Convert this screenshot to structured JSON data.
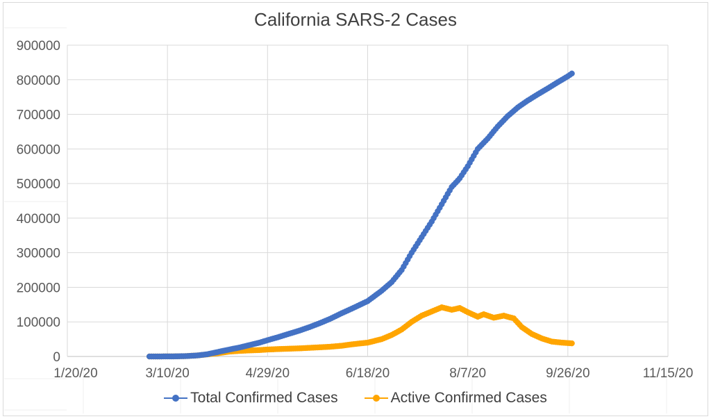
{
  "chart_data": {
    "type": "scatter",
    "title": "California SARS-2 Cases",
    "x_axis": {
      "type": "date",
      "min": "2020-01-20",
      "max": "2020-11-15",
      "tick_labels": [
        "1/20/20",
        "3/10/20",
        "4/29/20",
        "6/18/20",
        "8/7/20",
        "9/26/20",
        "11/15/20"
      ]
    },
    "y_axis": {
      "min": 0,
      "max": 900000,
      "tick_labels": [
        "0",
        "100000",
        "200000",
        "300000",
        "400000",
        "500000",
        "600000",
        "700000",
        "800000",
        "900000"
      ]
    },
    "grid": true,
    "legend_position": "bottom",
    "colors": {
      "total": "#4472C4",
      "active": "#FFA500"
    },
    "series": [
      {
        "name": "Total Confirmed Cases",
        "points": [
          [
            "2020-03-01",
            0
          ],
          [
            "2020-03-10",
            150
          ],
          [
            "2020-03-15",
            400
          ],
          [
            "2020-03-20",
            1200
          ],
          [
            "2020-03-25",
            3000
          ],
          [
            "2020-03-30",
            6500
          ],
          [
            "2020-04-05",
            14000
          ],
          [
            "2020-04-10",
            20000
          ],
          [
            "2020-04-15",
            26000
          ],
          [
            "2020-04-20",
            33000
          ],
          [
            "2020-04-25",
            40000
          ],
          [
            "2020-04-29",
            47000
          ],
          [
            "2020-05-05",
            57000
          ],
          [
            "2020-05-10",
            66000
          ],
          [
            "2020-05-15",
            75000
          ],
          [
            "2020-05-20",
            85000
          ],
          [
            "2020-05-25",
            96000
          ],
          [
            "2020-05-30",
            108000
          ],
          [
            "2020-06-05",
            125000
          ],
          [
            "2020-06-10",
            138000
          ],
          [
            "2020-06-18",
            160000
          ],
          [
            "2020-06-25",
            190000
          ],
          [
            "2020-06-30",
            215000
          ],
          [
            "2020-07-05",
            250000
          ],
          [
            "2020-07-10",
            300000
          ],
          [
            "2020-07-15",
            345000
          ],
          [
            "2020-07-20",
            390000
          ],
          [
            "2020-07-25",
            440000
          ],
          [
            "2020-07-30",
            490000
          ],
          [
            "2020-08-03",
            515000
          ],
          [
            "2020-08-07",
            550000
          ],
          [
            "2020-08-12",
            600000
          ],
          [
            "2020-08-17",
            630000
          ],
          [
            "2020-08-22",
            665000
          ],
          [
            "2020-08-27",
            695000
          ],
          [
            "2020-09-01",
            720000
          ],
          [
            "2020-09-06",
            740000
          ],
          [
            "2020-09-11",
            758000
          ],
          [
            "2020-09-16",
            775000
          ],
          [
            "2020-09-21",
            793000
          ],
          [
            "2020-09-26",
            810000
          ],
          [
            "2020-09-28",
            818000
          ]
        ]
      },
      {
        "name": "Active Confirmed Cases",
        "points": [
          [
            "2020-03-01",
            0
          ],
          [
            "2020-03-10",
            150
          ],
          [
            "2020-03-15",
            400
          ],
          [
            "2020-03-20",
            1200
          ],
          [
            "2020-03-25",
            3000
          ],
          [
            "2020-03-30",
            6000
          ],
          [
            "2020-04-05",
            10000
          ],
          [
            "2020-04-10",
            14000
          ],
          [
            "2020-04-15",
            16000
          ],
          [
            "2020-04-20",
            17500
          ],
          [
            "2020-04-25",
            18500
          ],
          [
            "2020-04-29",
            20000
          ],
          [
            "2020-05-05",
            21500
          ],
          [
            "2020-05-10",
            22500
          ],
          [
            "2020-05-15",
            23500
          ],
          [
            "2020-05-20",
            25000
          ],
          [
            "2020-05-25",
            26500
          ],
          [
            "2020-05-30",
            28000
          ],
          [
            "2020-06-05",
            31000
          ],
          [
            "2020-06-10",
            35000
          ],
          [
            "2020-06-18",
            40000
          ],
          [
            "2020-06-25",
            50000
          ],
          [
            "2020-06-30",
            62000
          ],
          [
            "2020-07-05",
            78000
          ],
          [
            "2020-07-10",
            100000
          ],
          [
            "2020-07-15",
            118000
          ],
          [
            "2020-07-20",
            130000
          ],
          [
            "2020-07-25",
            142000
          ],
          [
            "2020-07-30",
            135000
          ],
          [
            "2020-08-03",
            140000
          ],
          [
            "2020-08-07",
            128000
          ],
          [
            "2020-08-12",
            115000
          ],
          [
            "2020-08-15",
            122000
          ],
          [
            "2020-08-20",
            112000
          ],
          [
            "2020-08-25",
            118000
          ],
          [
            "2020-08-30",
            110000
          ],
          [
            "2020-09-03",
            85000
          ],
          [
            "2020-09-08",
            65000
          ],
          [
            "2020-09-13",
            52000
          ],
          [
            "2020-09-18",
            43000
          ],
          [
            "2020-09-23",
            40000
          ],
          [
            "2020-09-28",
            38000
          ]
        ]
      }
    ]
  }
}
